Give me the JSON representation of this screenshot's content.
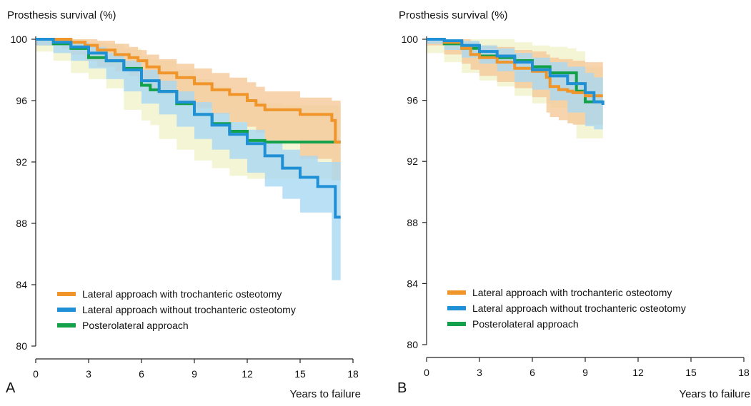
{
  "chart_data": [
    {
      "type": "line",
      "panel_label": "A",
      "ylabel": "Prosthesis survival (%)",
      "xlabel": "Years to failure",
      "xlim": [
        0,
        18
      ],
      "ylim": [
        80,
        100
      ],
      "xticks": [
        "0",
        "3",
        "6",
        "9",
        "12",
        "15",
        "18"
      ],
      "yticks": [
        "80",
        "84",
        "88",
        "92",
        "96",
        "100"
      ],
      "legend_position": "bottom-left",
      "grid": false,
      "series": [
        {
          "name": "Lateral approach with trochanteric osteotomy",
          "color": "#f0952a",
          "ci_color": "#f5c99a",
          "x": [
            0,
            1.5,
            2,
            2.8,
            3.5,
            4.5,
            5.3,
            5.8,
            6.3,
            7,
            8,
            9,
            10,
            11,
            12,
            12.5,
            13,
            15,
            16.8,
            17,
            17.3
          ],
          "y": [
            100,
            100,
            99.8,
            99.6,
            99.3,
            99.0,
            98.8,
            98.6,
            98.2,
            97.8,
            97.5,
            97.1,
            96.7,
            96.4,
            96.0,
            95.7,
            95.4,
            95.1,
            94.7,
            93.3,
            93.3
          ],
          "ci_upper": [
            100,
            100,
            100,
            100,
            99.9,
            99.7,
            99.5,
            99.3,
            99.0,
            98.7,
            98.4,
            98.1,
            97.8,
            97.5,
            97.2,
            96.9,
            96.6,
            96.2,
            96.0,
            96.0,
            96.0
          ],
          "ci_lower": [
            100,
            99.6,
            99.4,
            99.0,
            98.6,
            98.2,
            97.9,
            97.6,
            97.2,
            96.8,
            96.4,
            96.0,
            95.5,
            95.1,
            94.6,
            94.3,
            93.9,
            93.4,
            92.2,
            90.8,
            90.8
          ]
        },
        {
          "name": "Lateral approach without trochanteric osteotomy",
          "color": "#1f8fd6",
          "ci_color": "#a9d8f2",
          "x": [
            0,
            1,
            2,
            3,
            4,
            5,
            6,
            7,
            8,
            9,
            10,
            11,
            12,
            13,
            14,
            15,
            16,
            16.8,
            17,
            17.3
          ],
          "y": [
            100,
            99.8,
            99.5,
            99.1,
            98.6,
            98.0,
            97.3,
            96.6,
            95.9,
            95.1,
            94.4,
            93.8,
            93.2,
            92.4,
            91.6,
            91.0,
            90.4,
            90.4,
            88.4,
            88.4
          ],
          "ci_upper": [
            100,
            100,
            99.8,
            99.5,
            99.1,
            98.6,
            98.0,
            97.3,
            96.6,
            95.9,
            95.2,
            94.6,
            94.1,
            93.4,
            92.8,
            92.4,
            92.0,
            92.0,
            92.0,
            92.0
          ],
          "ci_lower": [
            100,
            99.6,
            99.1,
            98.6,
            98.1,
            97.4,
            96.6,
            95.8,
            95.1,
            94.3,
            93.5,
            92.8,
            92.2,
            91.3,
            90.4,
            89.6,
            88.7,
            88.7,
            84.3,
            84.3
          ]
        },
        {
          "name": "Posterolateral approach",
          "color": "#12a04a",
          "ci_color": "#f1f3cc",
          "x": [
            0,
            1,
            2,
            3,
            4,
            5,
            6,
            6.5,
            7,
            8,
            9,
            10,
            11,
            12,
            13,
            14,
            15,
            16,
            17.3
          ],
          "y": [
            100,
            99.7,
            99.4,
            98.8,
            98.6,
            98.1,
            97.0,
            96.7,
            96.6,
            95.8,
            95.1,
            94.5,
            94.0,
            93.4,
            93.3,
            93.3,
            93.3,
            93.3,
            93.3
          ],
          "ci_upper": [
            100,
            100,
            100,
            99.8,
            99.7,
            99.4,
            98.9,
            98.7,
            98.6,
            98.0,
            97.4,
            96.9,
            96.4,
            96.0,
            95.8,
            95.7,
            95.7,
            95.7,
            95.7
          ],
          "ci_lower": [
            100,
            99.2,
            98.6,
            97.8,
            97.4,
            96.8,
            95.4,
            94.7,
            94.4,
            93.5,
            92.8,
            92.1,
            91.6,
            91.1,
            90.9,
            90.9,
            90.9,
            90.9,
            90.9
          ]
        }
      ]
    },
    {
      "type": "line",
      "panel_label": "B",
      "ylabel": "Prosthesis survival (%)",
      "xlabel": "Years to failure",
      "xlim": [
        0,
        18
      ],
      "ylim": [
        80,
        100
      ],
      "xticks": [
        "0",
        "3",
        "6",
        "9",
        "12",
        "15",
        "18"
      ],
      "yticks": [
        "80",
        "84",
        "88",
        "92",
        "96",
        "100"
      ],
      "legend_position": "bottom-left",
      "grid": false,
      "series": [
        {
          "name": "Lateral approach with trochanteric osteotomy",
          "color": "#f0952a",
          "ci_color": "#f5c99a",
          "x": [
            0,
            1,
            2,
            2.5,
            3,
            4,
            5,
            6,
            6.8,
            7,
            7.5,
            8,
            8.3,
            9,
            10
          ],
          "y": [
            100,
            99.8,
            99.4,
            99.0,
            98.8,
            98.5,
            98.1,
            97.9,
            97.5,
            96.9,
            96.7,
            96.6,
            96.5,
            96.3,
            96.3
          ],
          "ci_upper": [
            100,
            100,
            100,
            99.8,
            99.6,
            99.5,
            99.3,
            99.2,
            99.0,
            98.8,
            98.7,
            98.7,
            98.6,
            98.5,
            98.5
          ],
          "ci_lower": [
            100,
            99.6,
            99.0,
            98.4,
            98.0,
            97.6,
            97.2,
            96.8,
            96.2,
            95.2,
            94.9,
            94.7,
            94.5,
            94.4,
            94.4
          ]
        },
        {
          "name": "Lateral approach without trochanteric osteotomy",
          "color": "#1f8fd6",
          "ci_color": "#a9d8f2",
          "x": [
            0,
            1,
            2,
            3,
            4,
            5,
            6,
            7,
            8,
            9,
            9.5,
            10
          ],
          "y": [
            100,
            99.9,
            99.6,
            99.2,
            98.9,
            98.5,
            98.0,
            97.6,
            97.1,
            96.5,
            95.9,
            95.7
          ],
          "ci_upper": [
            100,
            100,
            99.9,
            99.6,
            99.4,
            99.1,
            98.8,
            98.5,
            98.2,
            97.8,
            97.5,
            97.3
          ],
          "ci_lower": [
            100,
            99.7,
            99.3,
            98.8,
            98.4,
            97.9,
            97.2,
            96.7,
            96.0,
            95.2,
            94.3,
            94.1
          ]
        },
        {
          "name": "Posterolateral approach",
          "color": "#12a04a",
          "ci_color": "#f1f3cc",
          "x": [
            0,
            1,
            2,
            3,
            4,
            5,
            6,
            7,
            8,
            8.5,
            9,
            10
          ],
          "y": [
            100,
            99.7,
            99.4,
            98.9,
            98.8,
            98.6,
            98.2,
            97.8,
            97.8,
            96.6,
            95.9,
            95.9
          ],
          "ci_upper": [
            100,
            100,
            100,
            100,
            100,
            99.8,
            99.6,
            99.5,
            99.4,
            99.2,
            98.2,
            98.2
          ],
          "ci_lower": [
            100,
            99.1,
            98.5,
            97.8,
            97.3,
            96.9,
            96.3,
            95.8,
            95.5,
            94.5,
            93.5,
            93.5
          ]
        }
      ]
    }
  ]
}
